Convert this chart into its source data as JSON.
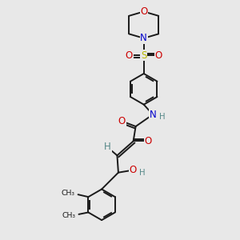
{
  "background_color": "#e8e8e8",
  "bond_color": "#1a1a1a",
  "atom_colors": {
    "O": "#cc0000",
    "N": "#0000cc",
    "S": "#b8b800",
    "C": "#1a1a1a",
    "H": "#558888"
  },
  "figsize": [
    3.0,
    3.0
  ],
  "dpi": 100,
  "xlim": [
    0,
    8
  ],
  "ylim": [
    0,
    10
  ]
}
